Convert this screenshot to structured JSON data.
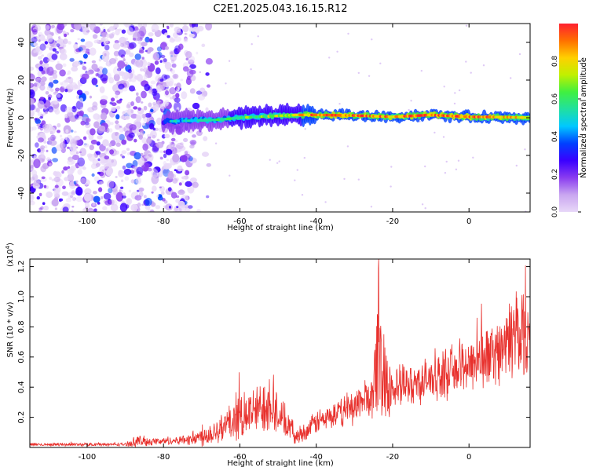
{
  "figure_title": "C2E1.2025.043.16.15.R12",
  "colormap": [
    "#e8d8f8",
    "#c9a6f0",
    "#8a3cf0",
    "#3a00ff",
    "#0040ff",
    "#00c8ff",
    "#20e0a0",
    "#40f040",
    "#c0f000",
    "#ffd000",
    "#ff7000",
    "#ff2030"
  ],
  "chart_data": [
    {
      "type": "heatmap",
      "name": "spectrogram",
      "xlabel": "Height of straight line (km)",
      "ylabel": "Frequency (Hz)",
      "xlim": [
        -115,
        16
      ],
      "ylim": [
        -50,
        50
      ],
      "xticks": [
        -100,
        -80,
        -60,
        -40,
        -20,
        0
      ],
      "yticks": [
        -40,
        -20,
        0,
        20,
        40
      ],
      "colorbar": {
        "label": "Normalized spectral amplitude",
        "range": [
          0,
          1
        ],
        "ticks": [
          "0.0",
          "0.2",
          "0.4",
          "0.6",
          "0.8"
        ],
        "tick_values": [
          0,
          0.2,
          0.4,
          0.6,
          0.8
        ]
      },
      "noise_region_x": [
        -115,
        -72
      ],
      "signal_band": [
        {
          "x": -80,
          "f": -2,
          "amp": 0.45
        },
        {
          "x": -72,
          "f": -1.5,
          "amp": 0.5
        },
        {
          "x": -65,
          "f": -1,
          "amp": 0.55
        },
        {
          "x": -60,
          "f": 0,
          "amp": 0.6
        },
        {
          "x": -55,
          "f": 0.5,
          "amp": 0.65
        },
        {
          "x": -50,
          "f": 1,
          "amp": 0.7
        },
        {
          "x": -45,
          "f": 1.5,
          "amp": 0.75
        },
        {
          "x": -40,
          "f": 1.5,
          "amp": 0.95
        },
        {
          "x": -30,
          "f": 1.2,
          "amp": 0.9
        },
        {
          "x": -20,
          "f": 0.5,
          "amp": 0.85
        },
        {
          "x": -10,
          "f": 1.5,
          "amp": 0.95
        },
        {
          "x": 0,
          "f": 0.5,
          "amp": 0.9
        },
        {
          "x": 10,
          "f": 0.3,
          "amp": 0.85
        },
        {
          "x": 16,
          "f": 0,
          "amp": 0.8
        }
      ]
    },
    {
      "type": "line",
      "name": "snr",
      "xlabel": "Height of straight line (km)",
      "ylabel": "SNR (10 * v/v)",
      "multiplier_base": "(x10",
      "multiplier_exp": "4",
      "multiplier_close": ")",
      "xlim": [
        -115,
        16
      ],
      "ylim": [
        0,
        1.25
      ],
      "xticks": [
        -100,
        -80,
        -60,
        -40,
        -20,
        0
      ],
      "yticks": [
        "0.2",
        "0.4",
        "0.6",
        "0.8",
        "1.0",
        "1.2"
      ],
      "ytick_values": [
        0.2,
        0.4,
        0.6,
        0.8,
        1.0,
        1.2
      ],
      "series_color": "#e8302c",
      "envelope": {
        "x": [
          -115,
          -90,
          -87,
          -80,
          -75,
          -70,
          -65,
          -60,
          -55,
          -52,
          -50,
          -45,
          -42,
          -40,
          -35,
          -30,
          -25,
          -24,
          -20,
          -15,
          -10,
          -5,
          0,
          5,
          10,
          13,
          16
        ],
        "mean": [
          0.02,
          0.02,
          0.04,
          0.04,
          0.05,
          0.07,
          0.13,
          0.2,
          0.25,
          0.33,
          0.22,
          0.07,
          0.12,
          0.17,
          0.21,
          0.28,
          0.35,
          0.6,
          0.38,
          0.42,
          0.45,
          0.5,
          0.56,
          0.6,
          0.68,
          0.8,
          0.72
        ],
        "amp": [
          0.01,
          0.01,
          0.04,
          0.02,
          0.03,
          0.06,
          0.1,
          0.14,
          0.16,
          0.22,
          0.14,
          0.05,
          0.06,
          0.08,
          0.08,
          0.12,
          0.14,
          0.45,
          0.15,
          0.13,
          0.14,
          0.16,
          0.18,
          0.2,
          0.22,
          0.4,
          0.18
        ]
      }
    }
  ]
}
